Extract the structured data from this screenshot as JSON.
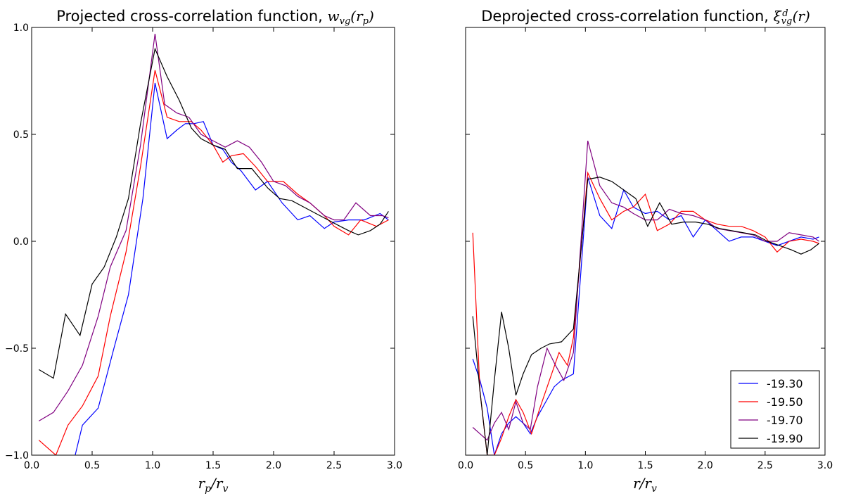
{
  "chart_data": [
    {
      "type": "line",
      "title": "Projected cross-correlation function, w_vg(r_p)",
      "xlabel": "r_p/r_v",
      "ylabel": "",
      "xlim": [
        0.0,
        3.0
      ],
      "ylim": [
        -1.0,
        1.0
      ],
      "xticks": [
        "0.0",
        "0.5",
        "1.0",
        "1.5",
        "2.0",
        "2.5",
        "3.0"
      ],
      "yticks": [
        "−1.0",
        "−0.5",
        "0.0",
        "0.5",
        "1.0"
      ],
      "grid": false,
      "series": [
        {
          "name": "-19.30",
          "color": "#0000ff",
          "x": [
            0.36,
            0.42,
            0.55,
            0.68,
            0.8,
            0.92,
            1.02,
            1.12,
            1.2,
            1.27,
            1.34,
            1.42,
            1.5,
            1.58,
            1.65,
            1.73,
            1.85,
            1.95,
            2.07,
            2.2,
            2.3,
            2.42,
            2.5,
            2.62,
            2.75,
            2.88,
            2.95
          ],
          "y": [
            -1.0,
            -0.86,
            -0.78,
            -0.5,
            -0.25,
            0.2,
            0.74,
            0.48,
            0.52,
            0.55,
            0.55,
            0.56,
            0.45,
            0.43,
            0.37,
            0.33,
            0.24,
            0.28,
            0.18,
            0.1,
            0.12,
            0.06,
            0.09,
            0.1,
            0.1,
            0.13,
            0.1
          ]
        },
        {
          "name": "-19.50",
          "color": "#ff0000",
          "x": [
            0.06,
            0.2,
            0.3,
            0.42,
            0.55,
            0.65,
            0.78,
            0.9,
            1.02,
            1.12,
            1.22,
            1.32,
            1.4,
            1.5,
            1.58,
            1.65,
            1.75,
            1.85,
            1.95,
            2.08,
            2.2,
            2.3,
            2.42,
            2.5,
            2.62,
            2.72,
            2.85,
            2.95
          ],
          "y": [
            -0.93,
            -1.0,
            -0.86,
            -0.77,
            -0.63,
            -0.35,
            -0.05,
            0.35,
            0.8,
            0.58,
            0.56,
            0.56,
            0.52,
            0.45,
            0.37,
            0.4,
            0.41,
            0.35,
            0.28,
            0.28,
            0.22,
            0.18,
            0.12,
            0.07,
            0.03,
            0.1,
            0.07,
            0.1
          ]
        },
        {
          "name": "-19.70",
          "color": "#800080",
          "x": [
            0.06,
            0.18,
            0.3,
            0.42,
            0.55,
            0.65,
            0.78,
            0.9,
            1.02,
            1.1,
            1.2,
            1.3,
            1.4,
            1.5,
            1.6,
            1.7,
            1.8,
            1.9,
            2.0,
            2.1,
            2.2,
            2.3,
            2.42,
            2.5,
            2.58,
            2.68,
            2.8,
            2.9,
            2.95
          ],
          "y": [
            -0.84,
            -0.8,
            -0.7,
            -0.58,
            -0.35,
            -0.12,
            0.05,
            0.45,
            0.97,
            0.64,
            0.6,
            0.58,
            0.5,
            0.47,
            0.44,
            0.47,
            0.44,
            0.37,
            0.28,
            0.26,
            0.21,
            0.18,
            0.12,
            0.1,
            0.1,
            0.18,
            0.12,
            0.12,
            0.11
          ]
        },
        {
          "name": "-19.90",
          "color": "#000000",
          "x": [
            0.06,
            0.18,
            0.28,
            0.4,
            0.5,
            0.6,
            0.7,
            0.8,
            0.9,
            1.02,
            1.12,
            1.22,
            1.32,
            1.4,
            1.5,
            1.6,
            1.7,
            1.82,
            1.95,
            2.05,
            2.15,
            2.25,
            2.35,
            2.45,
            2.55,
            2.62,
            2.7,
            2.8,
            2.88,
            2.95
          ],
          "y": [
            -0.6,
            -0.64,
            -0.34,
            -0.44,
            -0.2,
            -0.12,
            0.02,
            0.2,
            0.55,
            0.9,
            0.77,
            0.66,
            0.53,
            0.48,
            0.45,
            0.43,
            0.34,
            0.34,
            0.25,
            0.2,
            0.19,
            0.16,
            0.13,
            0.1,
            0.07,
            0.05,
            0.03,
            0.05,
            0.08,
            0.14
          ]
        }
      ]
    },
    {
      "type": "line",
      "title": "Deprojected cross-correlation function, ξ^d_vg(r)",
      "xlabel": "r/r_v",
      "ylabel": "",
      "xlim": [
        0.0,
        3.0
      ],
      "ylim": [
        -1.0,
        1.0
      ],
      "xticks": [
        "0.0",
        "0.5",
        "1.0",
        "1.5",
        "2.0",
        "2.5",
        "3.0"
      ],
      "yticks": [],
      "grid": false,
      "legend": "bottom-right",
      "series": [
        {
          "name": "-19.30",
          "color": "#0000ff",
          "x": [
            0.06,
            0.12,
            0.18,
            0.24,
            0.3,
            0.36,
            0.42,
            0.48,
            0.54,
            0.6,
            0.67,
            0.74,
            0.8,
            0.9,
            1.02,
            1.12,
            1.22,
            1.32,
            1.4,
            1.5,
            1.6,
            1.7,
            1.8,
            1.9,
            2.0,
            2.1,
            2.2,
            2.3,
            2.4,
            2.5,
            2.6,
            2.7,
            2.8,
            2.9,
            2.95
          ],
          "y": [
            -0.55,
            -0.65,
            -0.78,
            -1.0,
            -0.9,
            -0.85,
            -0.82,
            -0.85,
            -0.9,
            -0.82,
            -0.75,
            -0.68,
            -0.65,
            -0.62,
            0.3,
            0.12,
            0.06,
            0.24,
            0.16,
            0.13,
            0.14,
            0.1,
            0.12,
            0.02,
            0.1,
            0.05,
            0.0,
            0.02,
            0.02,
            0.0,
            -0.02,
            0.0,
            0.02,
            0.01,
            0.02
          ]
        },
        {
          "name": "-19.50",
          "color": "#ff0000",
          "x": [
            0.06,
            0.12,
            0.18,
            0.24,
            0.3,
            0.36,
            0.42,
            0.48,
            0.55,
            0.62,
            0.7,
            0.78,
            0.85,
            0.9,
            1.02,
            1.12,
            1.22,
            1.32,
            1.4,
            1.5,
            1.6,
            1.7,
            1.8,
            1.9,
            2.0,
            2.1,
            2.2,
            2.3,
            2.4,
            2.5,
            2.6,
            2.7,
            2.8,
            2.9,
            2.95
          ],
          "y": [
            0.04,
            -0.7,
            -1.0,
            -1.0,
            -0.92,
            -0.82,
            -0.74,
            -0.8,
            -0.9,
            -0.78,
            -0.65,
            -0.52,
            -0.58,
            -0.45,
            0.32,
            0.2,
            0.1,
            0.14,
            0.16,
            0.22,
            0.05,
            0.08,
            0.14,
            0.14,
            0.1,
            0.08,
            0.07,
            0.07,
            0.05,
            0.02,
            -0.05,
            0.0,
            0.01,
            0.0,
            -0.01
          ]
        },
        {
          "name": "-19.70",
          "color": "#800080",
          "x": [
            0.06,
            0.12,
            0.18,
            0.24,
            0.3,
            0.36,
            0.42,
            0.48,
            0.54,
            0.6,
            0.68,
            0.75,
            0.82,
            0.9,
            1.02,
            1.12,
            1.22,
            1.32,
            1.4,
            1.5,
            1.6,
            1.7,
            1.8,
            1.9,
            2.0,
            2.1,
            2.2,
            2.3,
            2.4,
            2.5,
            2.6,
            2.7,
            2.8,
            2.9,
            2.95
          ],
          "y": [
            -0.87,
            -0.9,
            -0.93,
            -0.85,
            -0.8,
            -0.88,
            -0.75,
            -0.85,
            -0.88,
            -0.68,
            -0.5,
            -0.58,
            -0.65,
            -0.52,
            0.47,
            0.26,
            0.18,
            0.16,
            0.13,
            0.1,
            0.1,
            0.15,
            0.13,
            0.12,
            0.1,
            0.06,
            0.05,
            0.04,
            0.03,
            0.0,
            0.0,
            0.04,
            0.03,
            0.02,
            0.0
          ]
        },
        {
          "name": "-19.90",
          "color": "#000000",
          "x": [
            0.06,
            0.12,
            0.18,
            0.24,
            0.3,
            0.36,
            0.42,
            0.48,
            0.55,
            0.63,
            0.7,
            0.8,
            0.9,
            1.02,
            1.12,
            1.22,
            1.32,
            1.42,
            1.52,
            1.62,
            1.72,
            1.82,
            1.92,
            2.02,
            2.12,
            2.22,
            2.32,
            2.42,
            2.52,
            2.62,
            2.72,
            2.8,
            2.88,
            2.95
          ],
          "y": [
            -0.35,
            -0.7,
            -1.0,
            -0.65,
            -0.33,
            -0.5,
            -0.72,
            -0.62,
            -0.53,
            -0.5,
            -0.48,
            -0.47,
            -0.41,
            0.29,
            0.3,
            0.28,
            0.24,
            0.2,
            0.07,
            0.18,
            0.08,
            0.09,
            0.09,
            0.08,
            0.06,
            0.05,
            0.04,
            0.03,
            0.0,
            -0.02,
            -0.04,
            -0.06,
            -0.04,
            -0.01
          ]
        }
      ]
    }
  ]
}
